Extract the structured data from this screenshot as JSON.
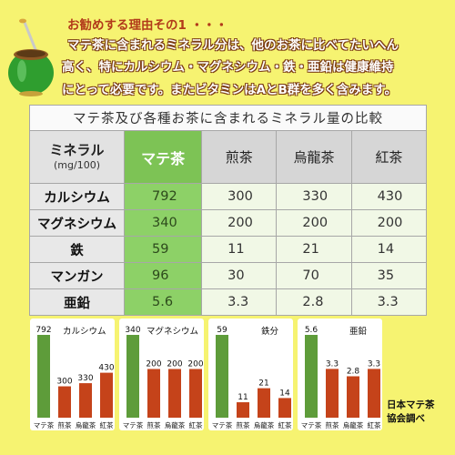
{
  "intro": {
    "heading": "お勧めする理由その1 ・・・",
    "lines": [
      "マテ茶に含まれるミネラル分は、他のお茶に比べてたいへん",
      "高く、特にカルシウム・マグネシウム・鉄・亜鉛は健康維持",
      "にとって必要です。またビタミンはAとB群を多く含みます。"
    ]
  },
  "table": {
    "caption": "マテ茶及び各種お茶に含まれるミネラル量の比較",
    "header_label": "ミネラル",
    "header_unit": "(mg/100)",
    "columns": [
      "マテ茶",
      "煎茶",
      "烏龍茶",
      "紅茶"
    ],
    "rows": [
      {
        "label": "カルシウム",
        "values": [
          "792",
          "300",
          "330",
          "430"
        ]
      },
      {
        "label": "マグネシウム",
        "values": [
          "340",
          "200",
          "200",
          "200"
        ]
      },
      {
        "label": "鉄",
        "values": [
          "59",
          "11",
          "21",
          "14"
        ]
      },
      {
        "label": "マンガン",
        "values": [
          "96",
          "30",
          "70",
          "35"
        ]
      },
      {
        "label": "亜鉛",
        "values": [
          "5.6",
          "3.3",
          "2.8",
          "3.3"
        ]
      }
    ]
  },
  "colors": {
    "mate_bar": "#5e9c3a",
    "other_bar": "#c5431a",
    "mate_cell": "#8dd167",
    "background": "#f6f371"
  },
  "chart_data": [
    {
      "type": "bar",
      "title": "カルシウム",
      "categories": [
        "マテ茶",
        "煎茶",
        "烏龍茶",
        "紅茶"
      ],
      "values": [
        792,
        300,
        330,
        430
      ],
      "value_labels": [
        "792",
        "300",
        "330",
        "430"
      ],
      "ylim": [
        0,
        792
      ]
    },
    {
      "type": "bar",
      "title": "マグネシウム",
      "categories": [
        "マテ茶",
        "煎茶",
        "烏龍茶",
        "紅茶"
      ],
      "values": [
        340,
        200,
        200,
        200
      ],
      "value_labels": [
        "340",
        "200",
        "200",
        "200"
      ],
      "ylim": [
        0,
        340
      ]
    },
    {
      "type": "bar",
      "title": "鉄分",
      "categories": [
        "マテ茶",
        "煎茶",
        "烏龍茶",
        "紅茶"
      ],
      "values": [
        59,
        11,
        21,
        14
      ],
      "value_labels": [
        "59",
        "11",
        "21",
        "14"
      ],
      "ylim": [
        0,
        59
      ]
    },
    {
      "type": "bar",
      "title": "亜鉛",
      "categories": [
        "マテ茶",
        "煎茶",
        "烏龍茶",
        "紅茶"
      ],
      "values": [
        5.6,
        3.3,
        2.8,
        3.3
      ],
      "value_labels": [
        "5.6",
        "3.3",
        "2.8",
        "3.3"
      ],
      "ylim": [
        0,
        5.6
      ]
    }
  ],
  "source": {
    "line1": "日本マテ茶",
    "line2": "協会調べ"
  }
}
